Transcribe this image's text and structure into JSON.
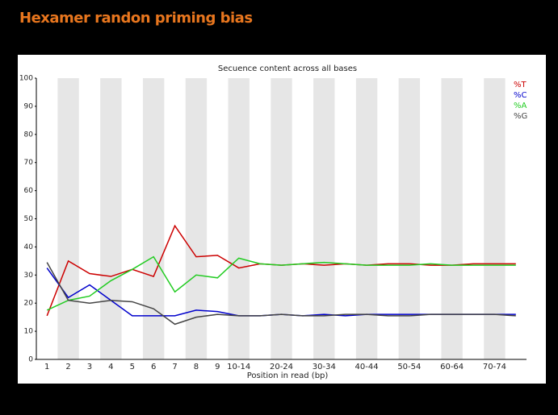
{
  "header": {
    "title": "Hexamer randon priming bias"
  },
  "chart_data": {
    "type": "line",
    "title": "Secuence content across all bases",
    "x_label": "Position in read (bp)",
    "categories": [
      "1",
      "2",
      "3",
      "4",
      "5",
      "6",
      "7",
      "8",
      "9",
      "10-14",
      null,
      "20-24",
      null,
      "30-34",
      null,
      "40-44",
      null,
      "50-54",
      null,
      "60-64",
      null,
      "70-74",
      null
    ],
    "series": [
      {
        "name": "%T",
        "color": "#cc0000",
        "values": [
          15.5,
          35,
          30.5,
          29.5,
          32,
          29.5,
          47.5,
          36.5,
          37,
          32.5,
          34,
          33.5,
          34,
          33.5,
          34,
          33.5,
          34,
          34,
          33.5,
          33.5,
          34,
          34,
          34
        ]
      },
      {
        "name": "%C",
        "color": "#0000cc",
        "values": [
          32.5,
          22,
          26.5,
          21,
          15.5,
          15.5,
          15.5,
          17.5,
          17,
          15.5,
          15.5,
          16,
          15.5,
          16,
          15.5,
          16,
          16,
          16,
          16,
          16,
          16,
          16,
          16
        ]
      },
      {
        "name": "%A",
        "color": "#22cc22",
        "values": [
          17.5,
          21,
          22.5,
          28,
          32,
          36.5,
          24,
          30,
          29,
          36,
          34,
          33.5,
          34,
          34.5,
          34,
          33.5,
          33.5,
          33.5,
          34,
          33.5,
          33.5,
          33.5,
          33.5
        ]
      },
      {
        "name": "%G",
        "color": "#444444",
        "values": [
          34.5,
          21,
          20,
          21,
          20.5,
          18,
          12.5,
          15,
          16,
          15.5,
          15.5,
          16,
          15.5,
          15.5,
          16,
          16,
          15.5,
          15.5,
          16,
          16,
          16,
          16,
          15.5
        ]
      }
    ],
    "ylim": [
      0,
      100
    ],
    "yticks": [
      0,
      10,
      20,
      30,
      40,
      50,
      60,
      70,
      80,
      90,
      100
    ],
    "legend": "top-right"
  }
}
